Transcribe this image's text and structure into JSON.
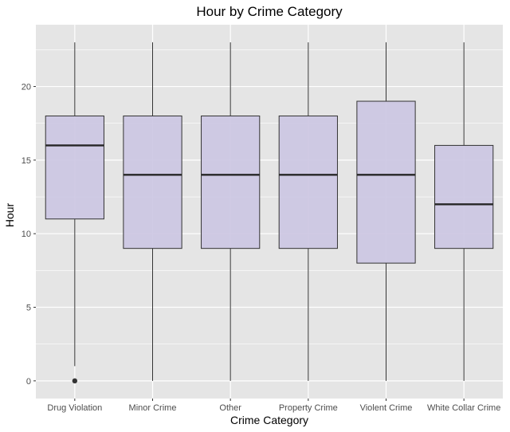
{
  "chart_data": {
    "type": "boxplot",
    "title": "Hour by Crime Category",
    "xlabel": "Crime Category",
    "ylabel": "Hour",
    "ylim": [
      -1.2,
      24.2
    ],
    "yticks": [
      0,
      5,
      10,
      15,
      20
    ],
    "grid": true,
    "legend": "none",
    "colors": {
      "panel": "#e5e5e5",
      "grid": "#ffffff",
      "box_fill": "#cbc5e2",
      "box_stroke": "#333333",
      "whisker": "#333333",
      "median": "#262626",
      "outlier": "#333333"
    },
    "categories": [
      "Drug Violation",
      "Minor Crime",
      "Other",
      "Property Crime",
      "Violent Crime",
      "White Collar Crime"
    ],
    "boxes": [
      {
        "category": "Drug Violation",
        "whisker_low": 1,
        "q1": 11,
        "median": 16,
        "q3": 18,
        "whisker_high": 23,
        "outliers": [
          0
        ]
      },
      {
        "category": "Minor Crime",
        "whisker_low": 0,
        "q1": 9,
        "median": 14,
        "q3": 18,
        "whisker_high": 23,
        "outliers": []
      },
      {
        "category": "Other",
        "whisker_low": 0,
        "q1": 9,
        "median": 14,
        "q3": 18,
        "whisker_high": 23,
        "outliers": []
      },
      {
        "category": "Property Crime",
        "whisker_low": 0,
        "q1": 9,
        "median": 14,
        "q3": 18,
        "whisker_high": 23,
        "outliers": []
      },
      {
        "category": "Violent Crime",
        "whisker_low": 0,
        "q1": 8,
        "median": 14,
        "q3": 19,
        "whisker_high": 23,
        "outliers": []
      },
      {
        "category": "White Collar Crime",
        "whisker_low": 0,
        "q1": 9,
        "median": 12,
        "q3": 16,
        "whisker_high": 23,
        "outliers": []
      }
    ]
  }
}
